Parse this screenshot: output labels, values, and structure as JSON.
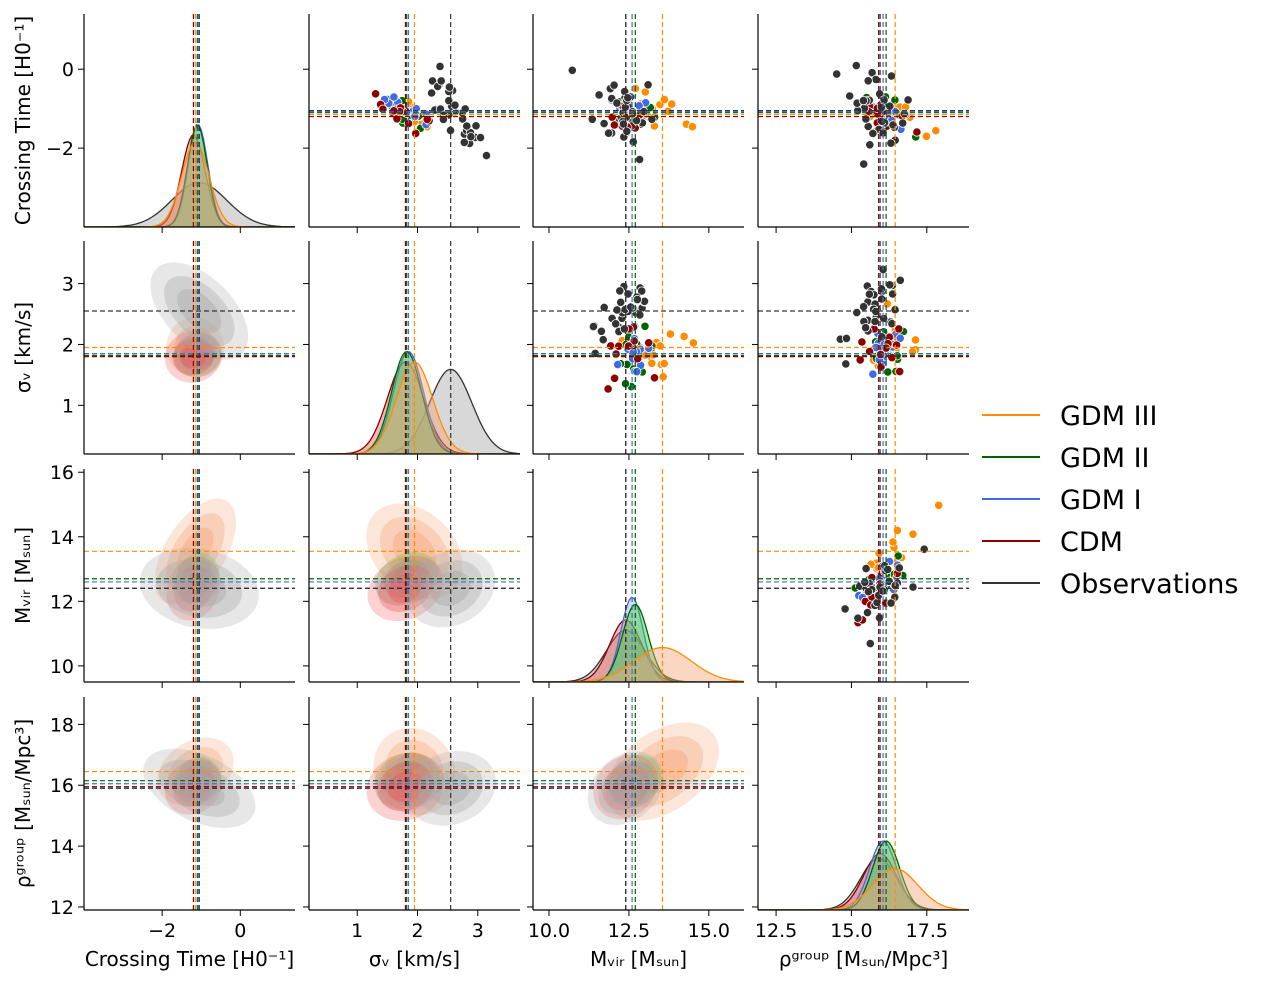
{
  "chart_data": {
    "type": "pairplot",
    "grid": false,
    "legend_placement": "right",
    "variables": [
      {
        "key": "tc",
        "label": "Crossing Time [H0⁻¹]",
        "range": [
          -4.0,
          1.4
        ],
        "ticks": [
          -2,
          0
        ],
        "tick_labels": [
          "−2",
          "0"
        ]
      },
      {
        "key": "sv",
        "label": "σᵥ [km/s]",
        "range": [
          0.2,
          3.7
        ],
        "ticks": [
          1,
          2,
          3
        ],
        "tick_labels": [
          "1",
          "2",
          "3"
        ]
      },
      {
        "key": "mv",
        "label": "Mᵥᵢᵣ [Mₛᵤₙ]",
        "range": [
          9.5,
          16.1
        ],
        "ticks": [
          10.0,
          12.5,
          15.0
        ],
        "tick_labels": [
          "10.0",
          "12.5",
          "15.0"
        ]
      },
      {
        "key": "rho",
        "label": "ρᵍʳᵒᵘᵖ [Mₛᵤₙ/Mpc³]",
        "range": [
          11.9,
          18.9
        ],
        "ticks": [
          12.5,
          15.0,
          17.5
        ],
        "tick_labels": [
          "12.5",
          "15.0",
          "17.5"
        ]
      }
    ],
    "row_labels": [
      "Crossing Time [H0⁻¹]",
      "σᵥ [km/s]",
      "Mᵥᵢᵣ [Mₛᵤₙ]",
      "ρᵍʳᵒᵘᵖ [Mₛᵤₙ/Mpc³]"
    ],
    "row_tick_labels": [
      {
        "ticks": [
          -2,
          0
        ],
        "labels": [
          "−2",
          "0"
        ]
      },
      {
        "ticks": [
          1,
          2,
          3
        ],
        "labels": [
          "1",
          "2",
          "3"
        ]
      },
      {
        "ticks": [
          10,
          12,
          14,
          16
        ],
        "labels": [
          "10",
          "12",
          "14",
          "16"
        ]
      },
      {
        "ticks": [
          12,
          14,
          16,
          18
        ],
        "labels": [
          "12",
          "14",
          "16",
          "18"
        ]
      }
    ],
    "series": [
      {
        "name": "GDM III",
        "color": "#ff8c00",
        "fill": "#f4a77a",
        "medians": {
          "tc": -1.15,
          "sv": 1.95,
          "mv": 13.55,
          "rho": 16.45
        },
        "spread": {
          "tc": 0.35,
          "sv": 0.3,
          "mv": 0.9,
          "rho": 0.75
        }
      },
      {
        "name": "GDM II",
        "color": "#006400",
        "fill": "#3ccf3c",
        "medians": {
          "tc": -1.1,
          "sv": 1.82,
          "mv": 12.7,
          "rho": 16.15
        },
        "spread": {
          "tc": 0.25,
          "sv": 0.25,
          "mv": 0.4,
          "rho": 0.45
        }
      },
      {
        "name": "GDM I",
        "color": "#4169e1",
        "fill": "#9fb0ea",
        "medians": {
          "tc": -1.08,
          "sv": 1.85,
          "mv": 12.6,
          "rho": 16.05
        },
        "spread": {
          "tc": 0.25,
          "sv": 0.25,
          "mv": 0.35,
          "rho": 0.45
        }
      },
      {
        "name": "CDM",
        "color": "#8b0000",
        "fill": "#f05a5a",
        "medians": {
          "tc": -1.2,
          "sv": 1.8,
          "mv": 12.4,
          "rho": 15.95
        },
        "spread": {
          "tc": 0.3,
          "sv": 0.3,
          "mv": 0.5,
          "rho": 0.55
        }
      },
      {
        "name": "Observations",
        "color": "#333333",
        "fill": "#a8a8a8",
        "medians": {
          "tc": -1.05,
          "sv": 2.55,
          "mv": 12.4,
          "rho": 15.9
        },
        "spread": {
          "tc": 0.7,
          "sv": 0.35,
          "mv": 0.6,
          "rho": 0.6
        }
      }
    ]
  }
}
